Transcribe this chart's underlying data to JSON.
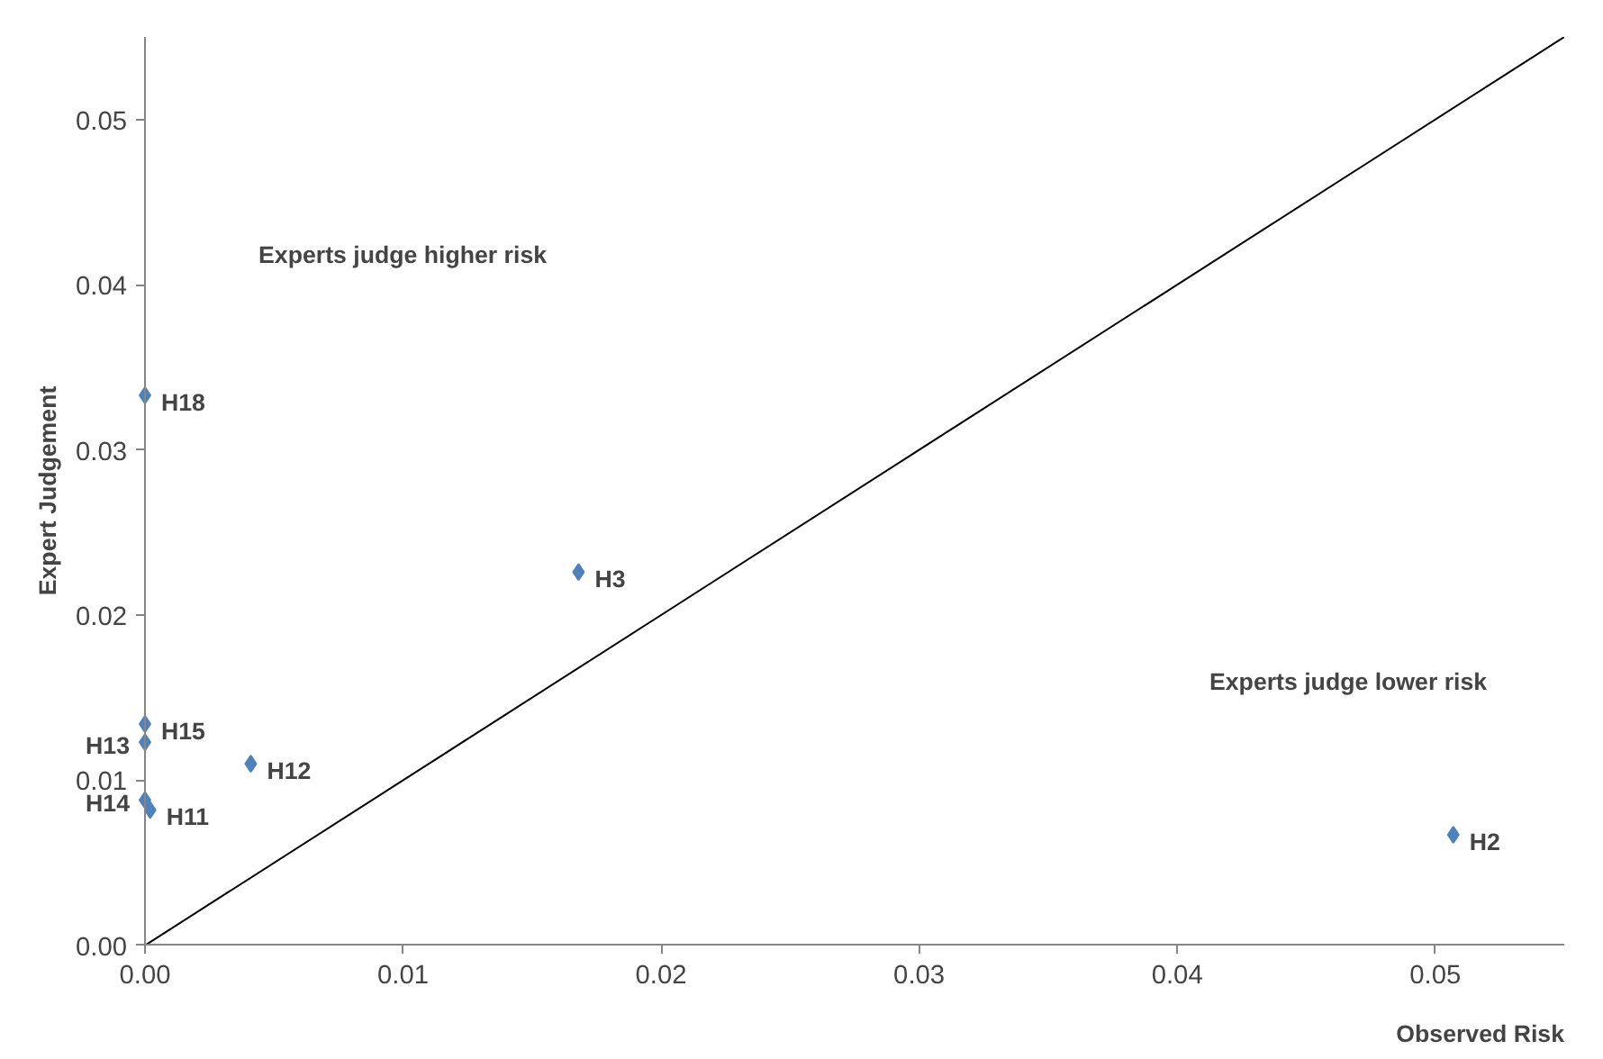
{
  "chart_data": {
    "type": "scatter",
    "xlabel": "Observed Risk",
    "ylabel": "Expert Judgement",
    "xlim": [
      0,
      0.055
    ],
    "ylim": [
      0,
      0.055
    ],
    "xticks": [
      {
        "value": 0,
        "label": "0.00"
      },
      {
        "value": 0.01,
        "label": "0.01"
      },
      {
        "value": 0.02,
        "label": "0.02"
      },
      {
        "value": 0.03,
        "label": "0.03"
      },
      {
        "value": 0.04,
        "label": "0.04"
      },
      {
        "value": 0.05,
        "label": "0.05"
      }
    ],
    "yticks": [
      {
        "value": 0,
        "label": "0.00"
      },
      {
        "value": 0.01,
        "label": "0.01"
      },
      {
        "value": 0.02,
        "label": "0.02"
      },
      {
        "value": 0.03,
        "label": "0.03"
      },
      {
        "value": 0.04,
        "label": "0.04"
      },
      {
        "value": 0.05,
        "label": "0.05"
      }
    ],
    "grid": false,
    "series": [
      {
        "marker": "diamond",
        "color": "#4f81bd",
        "x": [
          0,
          0.0168,
          0,
          0,
          0.0041,
          0,
          0.0002,
          0.0507
        ],
        "values": [
          0.0333,
          0.0226,
          0.0134,
          0.0123,
          0.011,
          0.0088,
          0.0082,
          0.0067
        ],
        "value_labels": [
          "H18",
          "H3",
          "H15",
          "H13",
          "H12",
          "H14",
          "H11",
          "H2"
        ]
      },
      {
        "type": "line",
        "color": "#000000",
        "x": [
          0,
          0.055
        ],
        "values": [
          0,
          0.055
        ]
      }
    ],
    "annotations": [
      "Experts judge higher risk",
      "Experts judge lower risk"
    ]
  }
}
